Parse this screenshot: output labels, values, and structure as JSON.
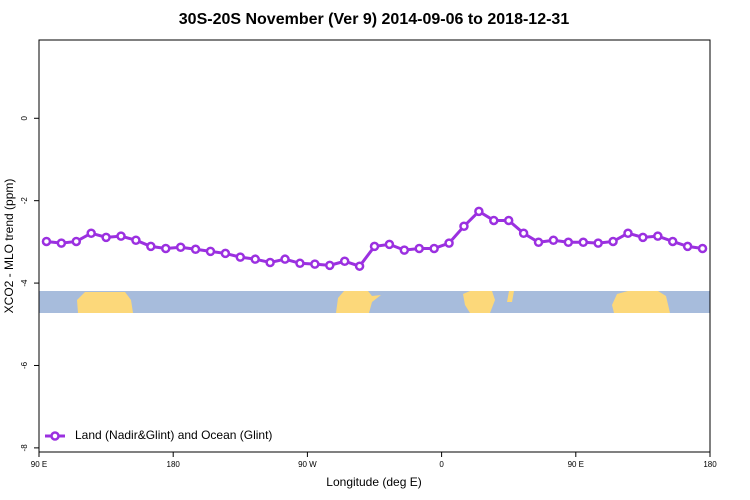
{
  "chart_data": {
    "type": "line",
    "title": "30S-20S November (Ver 9)   2014-09-06 to 2018-12-31",
    "x_label": "Longitude (deg E)",
    "y_label": "XCO2 - MLO trend (ppm)",
    "x": [
      95,
      105,
      115,
      125,
      135,
      145,
      155,
      165,
      175,
      185,
      195,
      205,
      215,
      225,
      235,
      245,
      255,
      265,
      275,
      285,
      295,
      305,
      315,
      325,
      335,
      345,
      355,
      365,
      375,
      385,
      395,
      405,
      415,
      425,
      435,
      445,
      455,
      465,
      475,
      485,
      495,
      505,
      515,
      525,
      535
    ],
    "series": [
      {
        "name": "Land (Nadir&Glint) and Ocean (Glint)",
        "color": "#9b30e0",
        "values": [
          -2.99,
          -3.03,
          -2.99,
          -2.79,
          -2.89,
          -2.86,
          -2.96,
          -3.11,
          -3.16,
          -3.13,
          -3.18,
          -3.23,
          -3.28,
          -3.37,
          -3.42,
          -3.5,
          -3.42,
          -3.52,
          -3.54,
          -3.57,
          -3.47,
          -3.59,
          -3.11,
          -3.06,
          -3.2,
          -3.16,
          -3.16,
          -3.03,
          -2.62,
          -2.26,
          -2.48,
          -2.48,
          -2.79,
          -3.01,
          -2.96,
          -3.01,
          -3.01,
          -3.03,
          -2.99,
          -2.79,
          -2.89,
          -2.86,
          -2.99,
          -3.11,
          -3.16
        ]
      }
    ],
    "xlim": [
      90,
      540
    ],
    "xticks": [
      {
        "value": 90,
        "label": "90 E"
      },
      180,
      {
        "value": 270,
        "label": "90 W"
      },
      {
        "value": 360,
        "label": "0"
      },
      {
        "value": 450,
        "label": "90 E"
      },
      {
        "value": 540,
        "label": "180"
      }
    ],
    "ylim": [
      -8.1,
      1.9
    ],
    "yticks": [
      0,
      -2,
      -4,
      -6,
      -8
    ],
    "legend": "bottom-left"
  }
}
